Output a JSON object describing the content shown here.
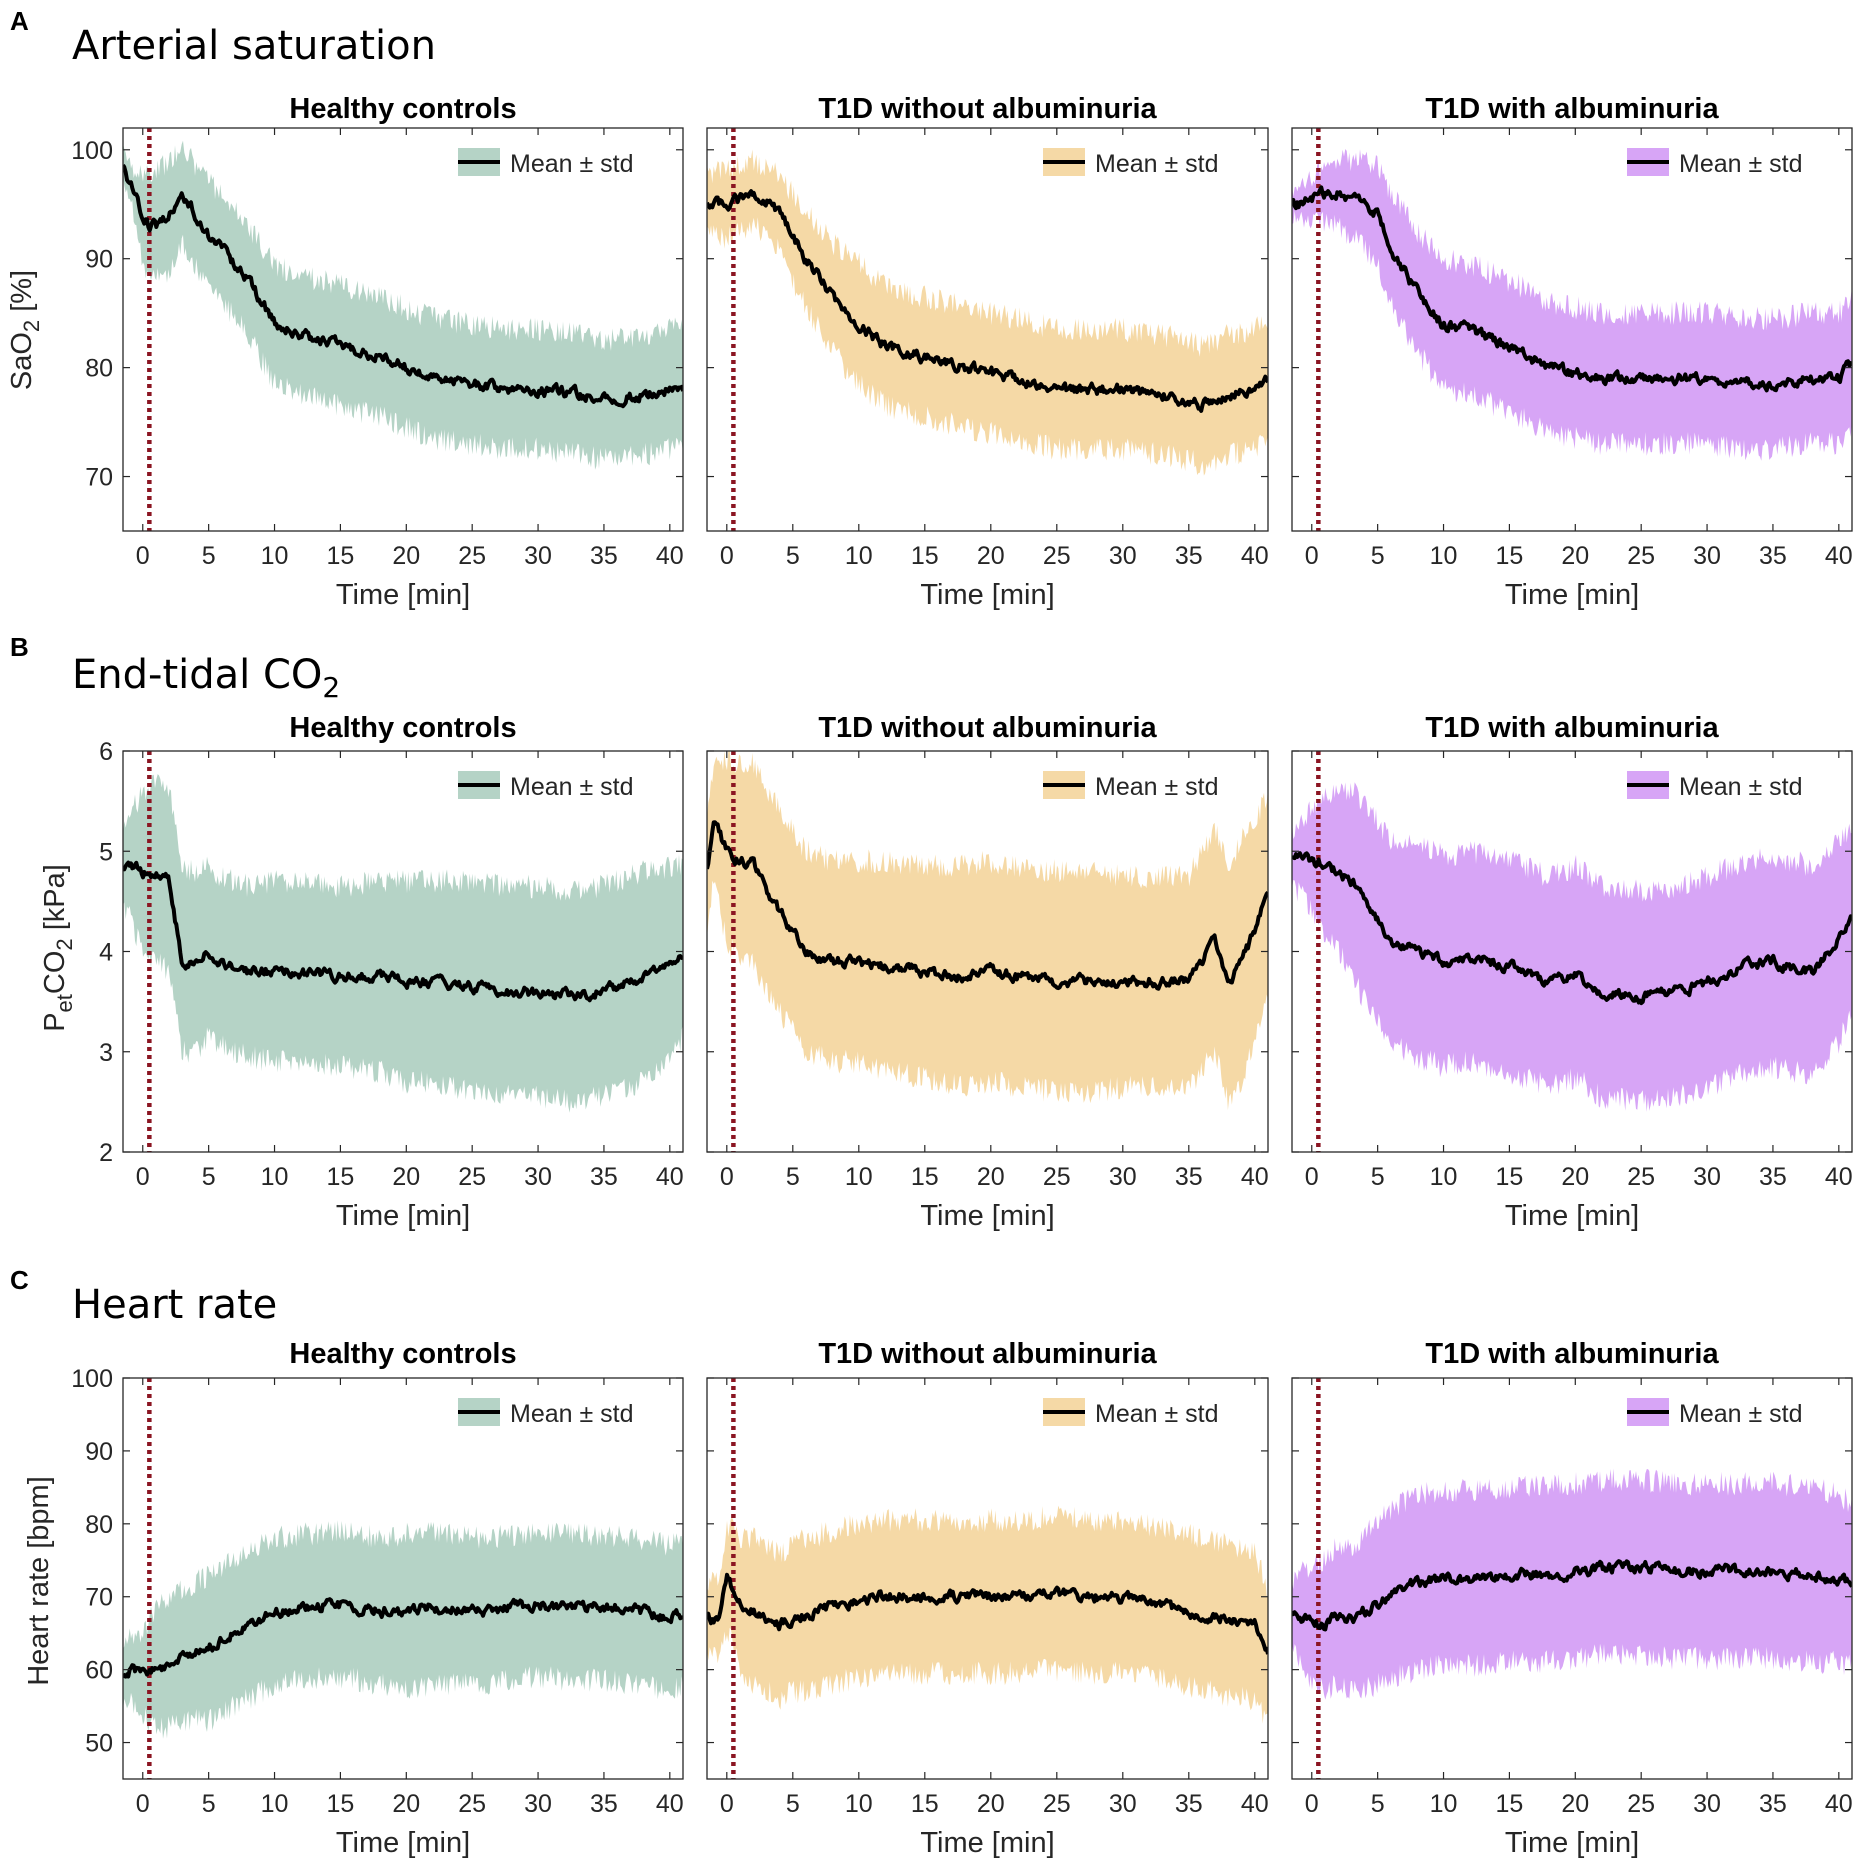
{
  "panel_letters": [
    "A",
    "B",
    "C"
  ],
  "section_titles": [
    "Arterial saturation",
    "End-tidal CO",
    "Heart rate"
  ],
  "co2_subscript": "2",
  "group_titles": [
    "Healthy controls",
    "T1D without albuminuria",
    "T1D with albuminuria"
  ],
  "group_colors": [
    "#b5d3c6",
    "#f5d9a6",
    "#d7a5f6"
  ],
  "marker_color": "#8b1522",
  "legend_label": "Mean ± std",
  "x_axis_label": "Time [min]",
  "y_labels": {
    "sao2": {
      "main": "SaO",
      "sub": "2",
      "tail": " [%]"
    },
    "petco2": {
      "main": "P",
      "sub1": "et",
      "mid": "CO",
      "sub2": "2",
      "tail": " [kPa]"
    },
    "hr": {
      "main": "Heart rate [bpm]"
    }
  },
  "chart_data": [
    {
      "type": "line",
      "title": "Healthy controls",
      "section": "Arterial saturation",
      "xlabel": "Time [min]",
      "ylabel": "SaO2 [%]",
      "xlim": [
        -1.5,
        41
      ],
      "ylim": [
        65,
        102
      ],
      "xticks": [
        0,
        5,
        10,
        15,
        20,
        25,
        30,
        35,
        40
      ],
      "yticks": [
        70,
        80,
        90,
        100
      ],
      "marker_x": 0.5,
      "series": [
        {
          "name": "Mean ± std",
          "x": [
            -1.5,
            -1,
            0,
            0.5,
            1,
            2,
            3,
            4,
            5,
            6,
            8,
            10,
            12,
            15,
            18,
            20,
            22,
            25,
            28,
            30,
            33,
            35,
            38,
            40,
            41
          ],
          "mean": [
            98.5,
            97,
            94,
            93,
            93,
            94,
            96,
            94,
            92,
            91,
            88,
            84,
            83,
            82,
            81,
            80,
            79,
            78.5,
            78,
            78,
            77.5,
            77,
            77.5,
            78,
            78
          ],
          "std": [
            1,
            1.5,
            4,
            5,
            5,
            5,
            4.5,
            4.5,
            5,
            5,
            5,
            5.5,
            5.5,
            5.5,
            5.5,
            5.5,
            5.5,
            5.5,
            5.5,
            5.5,
            5.5,
            5.5,
            5.5,
            5.5,
            5.5
          ]
        }
      ]
    },
    {
      "type": "line",
      "title": "T1D without albuminuria",
      "section": "Arterial saturation",
      "xlabel": "Time [min]",
      "ylabel": "SaO2 [%]",
      "xlim": [
        -1.5,
        41
      ],
      "ylim": [
        65,
        102
      ],
      "xticks": [
        0,
        5,
        10,
        15,
        20,
        25,
        30,
        35,
        40
      ],
      "yticks": [
        70,
        80,
        90,
        100
      ],
      "marker_x": 0.5,
      "series": [
        {
          "name": "Mean ± std",
          "x": [
            -1.5,
            -1,
            0,
            1,
            2,
            3,
            4,
            5,
            6,
            8,
            10,
            12,
            15,
            18,
            20,
            22,
            25,
            28,
            30,
            33,
            35,
            36,
            38,
            40,
            41
          ],
          "mean": [
            95,
            95,
            95,
            95.5,
            96,
            95.5,
            94,
            92,
            90,
            86.5,
            84,
            82,
            81,
            80,
            79.5,
            79,
            78,
            78,
            78,
            77.5,
            77,
            76.5,
            77.5,
            78,
            79
          ],
          "std": [
            3,
            3,
            3,
            3,
            3,
            3,
            3.5,
            4,
            4.5,
            5,
            5.5,
            5.5,
            5.5,
            5.5,
            5.5,
            5.5,
            5.5,
            5.5,
            5.5,
            5.5,
            5.5,
            5.5,
            5.5,
            5.5,
            5.5
          ]
        }
      ]
    },
    {
      "type": "line",
      "title": "T1D with albuminuria",
      "section": "Arterial saturation",
      "xlabel": "Time [min]",
      "ylabel": "SaO2 [%]",
      "xlim": [
        -1.5,
        41
      ],
      "ylim": [
        65,
        102
      ],
      "xticks": [
        0,
        5,
        10,
        15,
        20,
        25,
        30,
        35,
        40
      ],
      "yticks": [
        70,
        80,
        90,
        100
      ],
      "marker_x": 0.5,
      "series": [
        {
          "name": "Mean ± std",
          "x": [
            -1.5,
            -1,
            0,
            1,
            2,
            3,
            4,
            5,
            6,
            8,
            10,
            12,
            15,
            18,
            20,
            22,
            25,
            28,
            30,
            33,
            35,
            38,
            40,
            41
          ],
          "mean": [
            95,
            95,
            95.5,
            96,
            96,
            95.5,
            95,
            94,
            91,
            87,
            84,
            83.5,
            82,
            80,
            79.5,
            79,
            79,
            79,
            79,
            78.5,
            78.5,
            79,
            79,
            80.5
          ],
          "std": [
            1.5,
            1.5,
            2,
            2.5,
            3,
            3.5,
            4,
            4.5,
            5,
            5.5,
            6,
            6,
            6,
            6,
            6,
            6,
            6,
            6,
            6,
            6,
            6,
            6,
            6,
            6
          ]
        }
      ]
    },
    {
      "type": "line",
      "title": "Healthy controls",
      "section": "End-tidal CO2",
      "xlabel": "Time [min]",
      "ylabel": "PetCO2 [kPa]",
      "xlim": [
        -1.5,
        41
      ],
      "ylim": [
        2,
        6
      ],
      "xticks": [
        0,
        5,
        10,
        15,
        20,
        25,
        30,
        35,
        40
      ],
      "yticks": [
        2,
        3,
        4,
        5,
        6
      ],
      "marker_x": 0.5,
      "series": [
        {
          "name": "Mean ± std",
          "x": [
            -1.5,
            -1,
            0,
            1,
            2,
            3,
            4,
            5,
            6,
            8,
            10,
            12,
            15,
            18,
            20,
            22,
            25,
            28,
            30,
            33,
            35,
            38,
            40,
            41
          ],
          "mean": [
            4.8,
            4.85,
            4.8,
            4.8,
            4.7,
            3.9,
            3.9,
            4.0,
            3.9,
            3.8,
            3.8,
            3.8,
            3.75,
            3.75,
            3.7,
            3.7,
            3.65,
            3.6,
            3.6,
            3.55,
            3.6,
            3.75,
            3.9,
            4.0
          ],
          "std": [
            0.4,
            0.5,
            0.8,
            0.9,
            0.9,
            0.9,
            0.9,
            0.85,
            0.85,
            0.85,
            0.9,
            0.9,
            0.9,
            0.95,
            1.0,
            1.0,
            1.05,
            1.05,
            1.05,
            1.05,
            1.05,
            1.05,
            0.95,
            0.85
          ]
        }
      ]
    },
    {
      "type": "line",
      "title": "T1D without albuminuria",
      "section": "End-tidal CO2",
      "xlabel": "Time [min]",
      "ylabel": "PetCO2 [kPa]",
      "xlim": [
        -1.5,
        41
      ],
      "ylim": [
        2,
        6
      ],
      "xticks": [
        0,
        5,
        10,
        15,
        20,
        25,
        30,
        35,
        40
      ],
      "yticks": [
        2,
        3,
        4,
        5,
        6
      ],
      "marker_x": 0.5,
      "series": [
        {
          "name": "Mean ± std",
          "x": [
            -1.5,
            -1,
            0,
            1,
            2,
            3,
            4,
            5,
            6,
            8,
            10,
            12,
            15,
            18,
            20,
            22,
            25,
            28,
            30,
            33,
            35,
            37,
            38,
            39,
            40,
            41
          ],
          "mean": [
            4.8,
            5.3,
            5.0,
            4.9,
            4.9,
            4.6,
            4.4,
            4.2,
            4.0,
            3.9,
            3.9,
            3.85,
            3.8,
            3.75,
            3.8,
            3.75,
            3.7,
            3.7,
            3.7,
            3.7,
            3.7,
            4.1,
            3.7,
            3.9,
            4.2,
            4.6
          ],
          "std": [
            0.6,
            0.6,
            0.9,
            1.0,
            1.0,
            1.0,
            1.0,
            1.0,
            1.0,
            1.0,
            1.0,
            1.05,
            1.05,
            1.1,
            1.1,
            1.1,
            1.1,
            1.1,
            1.05,
            1.05,
            1.05,
            1.1,
            1.2,
            1.2,
            1.1,
            1.0
          ]
        }
      ]
    },
    {
      "type": "line",
      "title": "T1D with albuminuria",
      "section": "End-tidal CO2",
      "xlabel": "Time [min]",
      "ylabel": "PetCO2 [kPa]",
      "xlim": [
        -1.5,
        41
      ],
      "ylim": [
        2,
        6
      ],
      "xticks": [
        0,
        5,
        10,
        15,
        20,
        25,
        30,
        35,
        40
      ],
      "yticks": [
        2,
        3,
        4,
        5,
        6
      ],
      "marker_x": 0.5,
      "series": [
        {
          "name": "Mean ± std",
          "x": [
            -1.5,
            -1,
            0,
            1,
            2,
            3,
            4,
            5,
            6,
            8,
            10,
            12,
            15,
            18,
            20,
            22,
            25,
            28,
            30,
            33,
            35,
            38,
            40,
            41
          ],
          "mean": [
            4.9,
            4.95,
            4.9,
            4.85,
            4.8,
            4.7,
            4.5,
            4.3,
            4.1,
            4.0,
            3.9,
            3.95,
            3.85,
            3.7,
            3.8,
            3.6,
            3.55,
            3.6,
            3.7,
            3.85,
            3.9,
            3.8,
            4.1,
            4.3
          ],
          "std": [
            0.3,
            0.35,
            0.5,
            0.7,
            0.8,
            0.9,
            1.0,
            1.0,
            1.0,
            1.05,
            1.05,
            1.05,
            1.05,
            1.05,
            1.05,
            1.05,
            1.05,
            1.05,
            1.05,
            1.05,
            1.05,
            1.05,
            1.0,
            0.9
          ]
        }
      ]
    },
    {
      "type": "line",
      "title": "Healthy controls",
      "section": "Heart rate",
      "xlabel": "Time [min]",
      "ylabel": "Heart rate [bpm]",
      "xlim": [
        -1.5,
        41
      ],
      "ylim": [
        45,
        100
      ],
      "xticks": [
        0,
        5,
        10,
        15,
        20,
        25,
        30,
        35,
        40
      ],
      "yticks": [
        50,
        60,
        70,
        80,
        90,
        100
      ],
      "marker_x": 0.5,
      "series": [
        {
          "name": "Mean ± std",
          "x": [
            -1.5,
            -1,
            0,
            1,
            2,
            3,
            4,
            5,
            6,
            8,
            10,
            12,
            15,
            18,
            20,
            22,
            25,
            28,
            30,
            33,
            35,
            38,
            40,
            41
          ],
          "mean": [
            59,
            60,
            59.5,
            60,
            61,
            62,
            62.5,
            63,
            64,
            66,
            68,
            68.5,
            69,
            68,
            68,
            68.5,
            68,
            68.5,
            69,
            68.5,
            68.5,
            68,
            67,
            67.5
          ],
          "std": [
            3,
            4,
            6,
            8,
            9,
            9,
            9.5,
            10,
            10,
            10,
            10,
            10,
            10,
            10,
            10.5,
            10.5,
            10,
            10,
            10,
            10,
            10,
            10,
            10,
            10
          ]
        }
      ]
    },
    {
      "type": "line",
      "title": "T1D without albuminuria",
      "section": "Heart rate",
      "xlabel": "Time [min]",
      "ylabel": "Heart rate [bpm]",
      "xlim": [
        -1.5,
        41
      ],
      "ylim": [
        45,
        100
      ],
      "xticks": [
        0,
        5,
        10,
        15,
        20,
        25,
        30,
        35,
        40
      ],
      "yticks": [
        50,
        60,
        70,
        80,
        90,
        100
      ],
      "marker_x": 0.5,
      "series": [
        {
          "name": "Mean ± std",
          "x": [
            -1.5,
            -1,
            -0.5,
            0,
            1,
            2,
            3,
            4,
            5,
            6,
            8,
            10,
            12,
            15,
            18,
            20,
            22,
            25,
            28,
            30,
            33,
            35,
            38,
            40,
            41
          ],
          "mean": [
            67,
            67,
            67.5,
            73,
            69,
            68,
            67,
            66,
            67,
            67.5,
            68.5,
            69.5,
            70,
            70,
            70,
            70,
            70,
            70.5,
            70,
            70,
            69,
            68,
            67,
            66,
            62
          ],
          "std": [
            4,
            5,
            6,
            7,
            9,
            10,
            10,
            10,
            10,
            10.5,
            10.5,
            10.5,
            10.5,
            10.5,
            10.5,
            10.5,
            10.5,
            10.5,
            10.5,
            10.5,
            10.5,
            10.5,
            10.5,
            10,
            9
          ]
        }
      ]
    },
    {
      "type": "line",
      "title": "T1D with albuminuria",
      "section": "Heart rate",
      "xlabel": "Time [min]",
      "ylabel": "Heart rate [bpm]",
      "xlim": [
        -1.5,
        41
      ],
      "ylim": [
        45,
        100
      ],
      "xticks": [
        0,
        5,
        10,
        15,
        20,
        25,
        30,
        35,
        40
      ],
      "yticks": [
        50,
        60,
        70,
        80,
        90,
        100
      ],
      "marker_x": 0.5,
      "series": [
        {
          "name": "Mean ± std",
          "x": [
            -1.5,
            -1,
            0,
            1,
            2,
            3,
            4,
            5,
            6,
            8,
            10,
            12,
            15,
            18,
            20,
            22,
            25,
            28,
            30,
            33,
            35,
            38,
            40,
            41
          ],
          "mean": [
            67.5,
            67,
            66.5,
            66,
            67.5,
            67,
            68,
            69,
            70.5,
            72,
            72.5,
            72.5,
            73,
            73,
            73.5,
            74,
            74,
            73.5,
            73.5,
            73.5,
            73.5,
            73,
            72.5,
            71.5
          ],
          "std": [
            5,
            6,
            8,
            9,
            9.5,
            10,
            10.5,
            11,
            11.5,
            12,
            12,
            12,
            12,
            12,
            12,
            12,
            12,
            12,
            12,
            12,
            12,
            12,
            11.5,
            11
          ]
        }
      ]
    }
  ]
}
